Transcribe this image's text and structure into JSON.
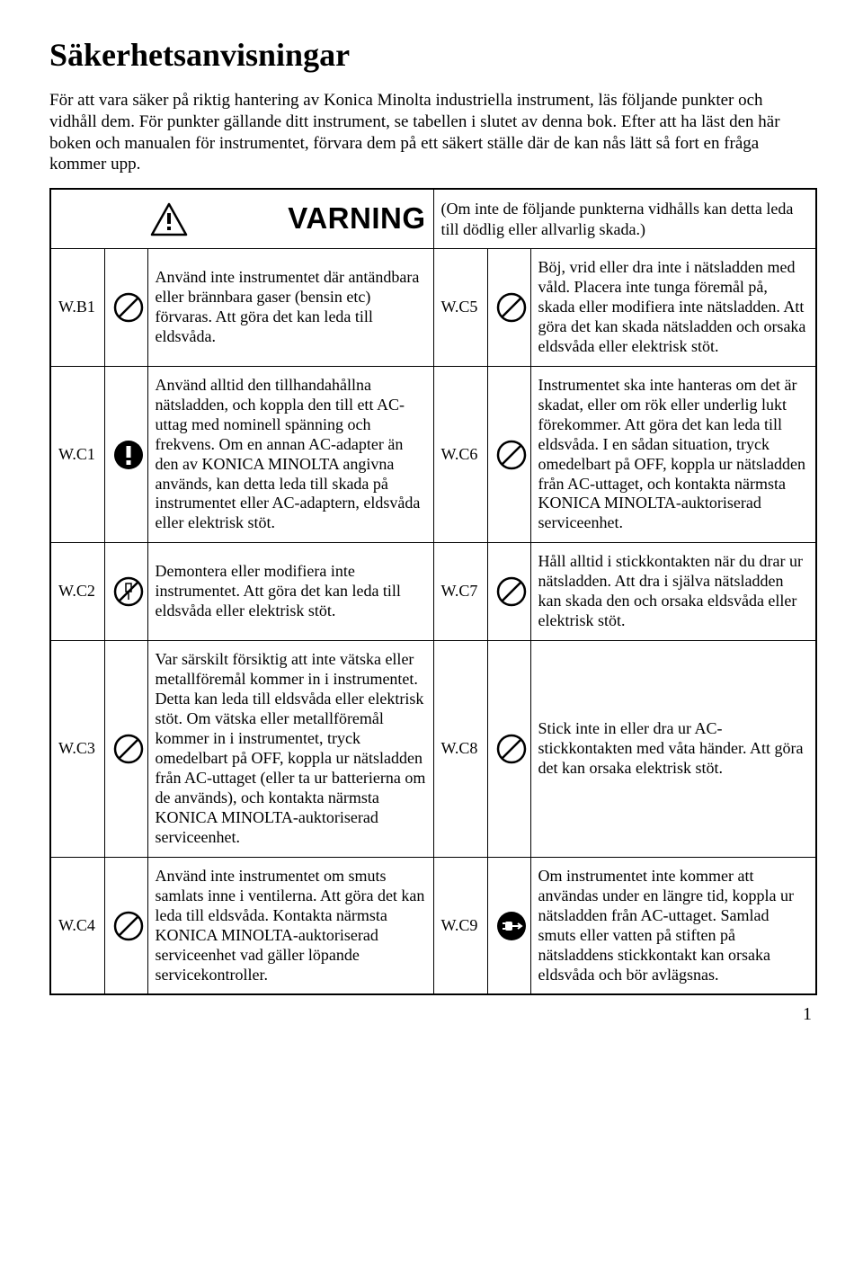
{
  "title": "Säkerhetsanvisningar",
  "intro": "För att vara säker på riktig hantering av Konica Minolta industriella instrument, läs följande punkter och vidhåll dem. För punkter gällande ditt instrument, se tabellen i slutet av denna bok.\nEfter att ha läst den här boken och manualen för instrumentet, förvara dem på ett säkert ställe där de kan nås lätt så fort en fråga kommer upp.",
  "warning_label": "VARNING",
  "warning_note": "(Om inte de följande punkterna vidhålls kan detta leda till dödlig eller allvarlig skada.)",
  "rows": [
    {
      "left_code": "W.B1",
      "left_text": "Använd inte instrumentet där antändbara eller brännbara gaser (bensin etc) förvaras. Att göra det kan leda till eldsvåda.",
      "right_code": "W.C5",
      "right_text": "Böj, vrid eller dra inte i nätsladden med våld. Placera inte tunga föremål på, skada eller modifiera inte nätsladden. Att göra det kan skada nätsladden och orsaka eldsvåda eller elektrisk stöt."
    },
    {
      "left_code": "W.C1",
      "left_text": "Använd alltid den tillhandahållna nätsladden, och koppla den till ett AC-uttag med nominell spänning och frekvens. Om en annan AC-adapter än den av KONICA MINOLTA angivna används, kan detta leda till skada på instrumentet eller AC-adaptern, eldsvåda eller elektrisk stöt.",
      "right_code": "W.C6",
      "right_text": "Instrumentet ska inte hanteras om det är skadat, eller om rök eller underlig lukt förekommer. Att göra det kan leda till eldsvåda. I en sådan situation, tryck omedelbart på OFF, koppla ur nätsladden från AC-uttaget, och kontakta närmsta KONICA MINOLTA-auktoriserad serviceenhet."
    },
    {
      "left_code": "W.C2",
      "left_text": "Demontera eller modifiera inte instrumentet. Att göra det kan leda till eldsvåda eller elektrisk stöt.",
      "right_code": "W.C7",
      "right_text": "Håll alltid i stickkontakten när du drar ur nätsladden. Att dra i själva nätsladden kan skada den och orsaka eldsvåda eller elektrisk stöt."
    },
    {
      "left_code": "W.C3",
      "left_text": "Var särskilt försiktig att inte vätska eller metallföremål kommer in i instrumentet. Detta kan leda till eldsvåda eller elektrisk stöt. Om vätska eller metallföremål kommer in i instrumentet, tryck omedelbart på OFF, koppla ur nätsladden från AC-uttaget (eller ta ur batterierna om de används), och kontakta närmsta KONICA MINOLTA-auktoriserad serviceenhet.",
      "right_code": "W.C8",
      "right_text": "Stick inte in eller dra ur AC-stickkontakten med våta händer. Att göra det kan orsaka elektrisk stöt."
    },
    {
      "left_code": "W.C4",
      "left_text": "Använd inte instrumentet om smuts samlats inne i ventilerna. Att göra det kan leda till eldsvåda. Kontakta närmsta KONICA MINOLTA-auktoriserad serviceenhet vad gäller löpande servicekontroller.",
      "right_code": "W.C9",
      "right_text": "Om instrumentet inte kommer att användas under en längre tid, koppla ur nätsladden från AC-uttaget. Samlad smuts eller vatten på stiften på nätsladdens stickkontakt kan orsaka eldsvåda och bör avlägsnas."
    }
  ],
  "page_number": "1",
  "icons": {
    "left": [
      "prohibit",
      "mandatory",
      "no-disassemble",
      "prohibit",
      "prohibit"
    ],
    "right": [
      "prohibit",
      "prohibit",
      "prohibit",
      "prohibit",
      "unplug"
    ]
  }
}
